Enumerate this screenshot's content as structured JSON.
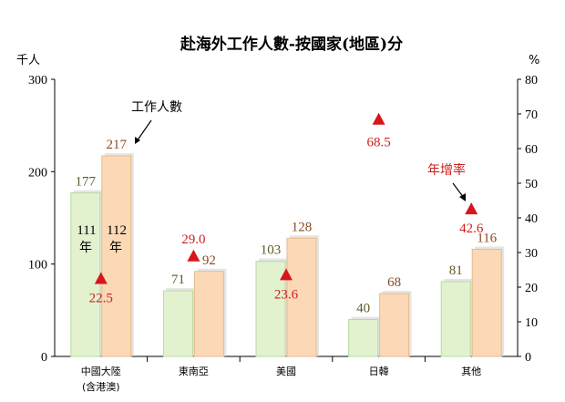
{
  "chart_data": {
    "type": "bar",
    "title": "赴海外工作人數-按國家(地區)分",
    "ylabel_left": "千人",
    "ylabel_right": "%",
    "ylim_left": [
      0,
      300
    ],
    "ylim_right": [
      0,
      80
    ],
    "yticks_left": [
      0,
      100,
      200,
      300
    ],
    "yticks_right": [
      0,
      10,
      20,
      30,
      40,
      50,
      60,
      70,
      80
    ],
    "categories": [
      "中國大陸",
      "東南亞",
      "美國",
      "日韓",
      "其他"
    ],
    "category_sublabels": [
      "(含港澳)",
      "",
      "",
      "",
      ""
    ],
    "series": [
      {
        "name": "111年",
        "values": [
          177,
          71,
          103,
          40,
          81
        ],
        "color": "#e2f2cf",
        "edge": "#b9d9a0"
      },
      {
        "name": "112年",
        "values": [
          217,
          92,
          128,
          68,
          116
        ],
        "color": "#fcd9b6",
        "edge": "#e8b98a"
      }
    ],
    "growth_rate": {
      "name": "年增率",
      "values": [
        22.5,
        29.0,
        23.6,
        68.5,
        42.6
      ],
      "color": "#d9141b"
    },
    "year_labels": [
      {
        "num": "111",
        "suffix": "年"
      },
      {
        "num": "112",
        "suffix": "年"
      }
    ],
    "annotation_bars": "工作人數",
    "annotation_rate": "年增率"
  }
}
